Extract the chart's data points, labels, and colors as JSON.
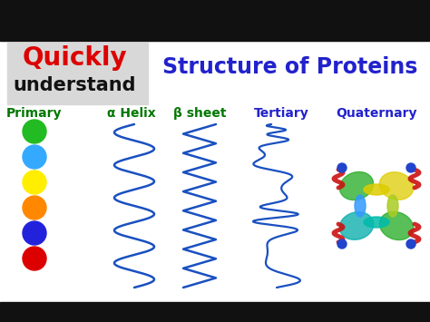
{
  "bg_color": "#ffffff",
  "gray_box_color": "#d8d8d8",
  "title_quickly": "Quickly",
  "title_understand": "understand",
  "title_structure": "Structure of Proteins",
  "quickly_color": "#dd0000",
  "understand_color": "#111111",
  "structure_color": "#2222cc",
  "label_primary": "Primary",
  "label_alpha": "α Helix",
  "label_beta": "β sheet",
  "label_tertiary": "Tertiary",
  "label_quaternary": "Quaternary",
  "label_color_green": "#007700",
  "label_color_blue": "#2222cc",
  "bead_colors": [
    "#22bb22",
    "#33aaff",
    "#ffee00",
    "#ff8800",
    "#2222dd",
    "#dd0000"
  ],
  "helix_color": "#1a50c0",
  "beta_color": "#1a50c0",
  "tertiary_color": "#1a50c0",
  "top_bar_color": "#111111",
  "bottom_bar_color": "#111111"
}
